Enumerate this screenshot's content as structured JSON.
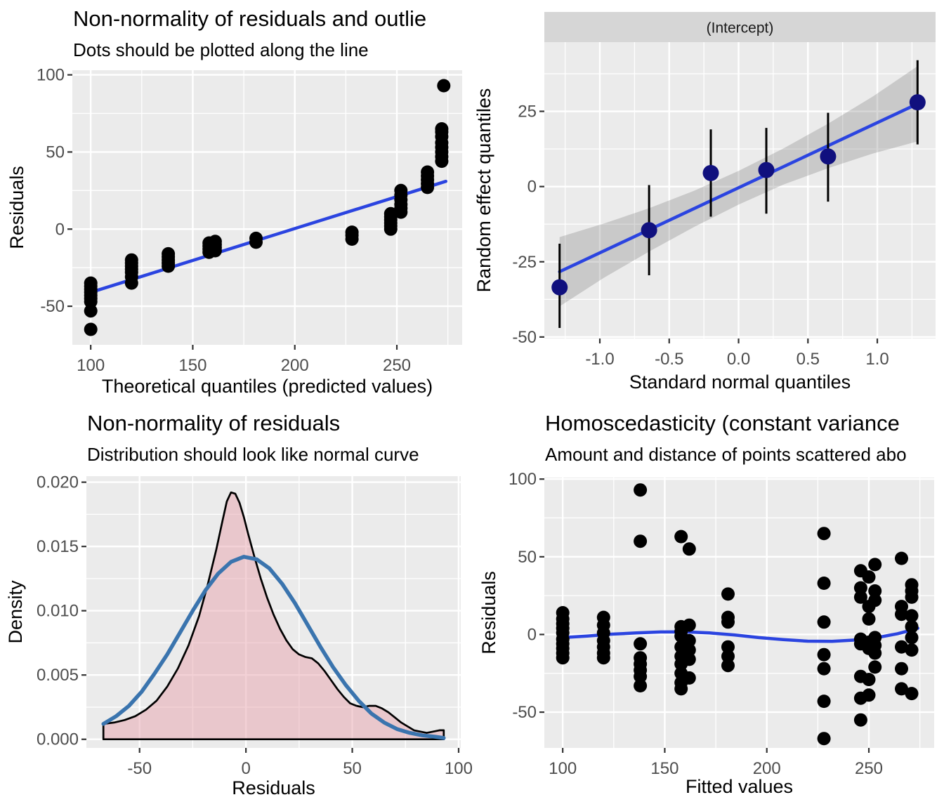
{
  "theme": {
    "panel_bg": "#EBEBEB",
    "grid_color": "#FFFFFF",
    "strip_bg": "#D6D6D6",
    "strip_text_color": "#1A1A1A",
    "tick_mark_color": "#333333",
    "tick_label_color": "#4D4D4D",
    "axis_title_color": "#000000",
    "smooth_line_blue": "#2B44E0",
    "navy_point": "#10107E",
    "point_black": "#000000",
    "errorbar_black": "#000000",
    "band_grey": "#737373",
    "density_fill_pink": "#E8A3AD",
    "density_outline": "#000000",
    "normal_curve_blue": "#3A74AE"
  },
  "chart_data": [
    {
      "id": "qq-residuals",
      "type": "scatter",
      "title": "Non-normality of residuals and outlie",
      "subtitle": "Dots should be plotted along the line",
      "xlabel": "Theoretical quantiles (predicted values)",
      "ylabel": "Residuals",
      "xlim": [
        91,
        282
      ],
      "ylim": [
        -75,
        103
      ],
      "xticks": [
        100,
        150,
        200,
        250
      ],
      "xtick_labels": [
        "100",
        "150",
        "200",
        "250"
      ],
      "yticks": [
        -50,
        0,
        50,
        100
      ],
      "ytick_labels": [
        "-50",
        "0",
        "50",
        "100"
      ],
      "xminor": [
        125,
        175,
        225,
        275
      ],
      "yminor": [
        -25,
        25,
        75
      ],
      "line": [
        [
          100,
          -41
        ],
        [
          274,
          31
        ]
      ],
      "points": [
        [
          100,
          -35
        ],
        [
          100,
          -37
        ],
        [
          100,
          -39
        ],
        [
          100,
          -41
        ],
        [
          100,
          -43
        ],
        [
          100,
          -45
        ],
        [
          100,
          -47
        ],
        [
          100,
          -53
        ],
        [
          100,
          -65
        ],
        [
          120,
          -20
        ],
        [
          120,
          -22
        ],
        [
          120,
          -24
        ],
        [
          120,
          -26
        ],
        [
          120,
          -28
        ],
        [
          120,
          -31
        ],
        [
          120,
          -35
        ],
        [
          138,
          -16
        ],
        [
          138,
          -18
        ],
        [
          138,
          -20
        ],
        [
          138,
          -22
        ],
        [
          138,
          -24
        ],
        [
          158,
          -9
        ],
        [
          158,
          -11
        ],
        [
          158,
          -13
        ],
        [
          158,
          -15
        ],
        [
          161,
          -8
        ],
        [
          161,
          -10
        ],
        [
          161,
          -12
        ],
        [
          161,
          -14
        ],
        [
          181,
          -6
        ],
        [
          181,
          -8.5
        ],
        [
          228,
          -2
        ],
        [
          228,
          -4
        ],
        [
          228,
          -6.5
        ],
        [
          247,
          0
        ],
        [
          247,
          2
        ],
        [
          247,
          4
        ],
        [
          247,
          6
        ],
        [
          247,
          8
        ],
        [
          247,
          10
        ],
        [
          252,
          11
        ],
        [
          252,
          13.5
        ],
        [
          252,
          16
        ],
        [
          252,
          19
        ],
        [
          252,
          22
        ],
        [
          252,
          25
        ],
        [
          265,
          27
        ],
        [
          265,
          29.5
        ],
        [
          265,
          32
        ],
        [
          265,
          34.5
        ],
        [
          265,
          37
        ],
        [
          272,
          44
        ],
        [
          272,
          47
        ],
        [
          272,
          50
        ],
        [
          272,
          53
        ],
        [
          272,
          56
        ],
        [
          272,
          60
        ],
        [
          272,
          63
        ],
        [
          272,
          65
        ],
        [
          273,
          93
        ]
      ]
    },
    {
      "id": "random-effects-qq",
      "type": "pointrange",
      "strip": "(Intercept)",
      "xlabel": "Standard normal quantiles",
      "ylabel": "Random effect quantiles",
      "xlim": [
        -1.4,
        1.42
      ],
      "ylim": [
        -50.5,
        48
      ],
      "xticks": [
        -1.0,
        -0.5,
        0.0,
        0.5,
        1.0
      ],
      "xtick_labels": [
        "-1.0",
        "-0.5",
        "0.0",
        "0.5",
        "1.0"
      ],
      "yticks": [
        -50,
        -25,
        0,
        25
      ],
      "ytick_labels": [
        "-50",
        "-25",
        "0",
        "25"
      ],
      "xminor": [
        -1.25,
        -0.75,
        -0.25,
        0.25,
        0.75,
        1.25
      ],
      "yminor": [
        -37.5,
        -12.5,
        12.5,
        37.5
      ],
      "band": {
        "x": [
          -1.29,
          -0.97,
          -0.645,
          -0.32,
          0,
          0.32,
          0.645,
          0.97,
          1.29
        ],
        "upper": [
          -16.8,
          -12.3,
          -7.2,
          -1.4,
          5.2,
          12.6,
          20.9,
          30.0,
          40.0
        ],
        "lower": [
          -39.8,
          -30.3,
          -21.6,
          -13.4,
          -6.0,
          0.6,
          6.1,
          11.0,
          15.0
        ]
      },
      "line": [
        [
          -1.29,
          -28.3
        ],
        [
          1.29,
          27.5
        ]
      ],
      "pointranges": [
        {
          "x": -1.29,
          "y": -33.5,
          "lo": -47,
          "hi": -19
        },
        {
          "x": -0.645,
          "y": -14.5,
          "lo": -29.5,
          "hi": 0.5
        },
        {
          "x": -0.2,
          "y": 4.5,
          "lo": -10,
          "hi": 19
        },
        {
          "x": 0.2,
          "y": 5.5,
          "lo": -9,
          "hi": 19.5
        },
        {
          "x": 0.645,
          "y": 10,
          "lo": -5,
          "hi": 24.5
        },
        {
          "x": 1.29,
          "y": 28,
          "lo": 14,
          "hi": 42
        }
      ]
    },
    {
      "id": "residual-density",
      "type": "density",
      "title": "Non-normality of residuals",
      "subtitle": "Distribution should look like normal curve",
      "xlabel": "Residuals",
      "ylabel": "Density",
      "xlim": [
        -75,
        101
      ],
      "ylim": [
        -0.00067,
        0.02047
      ],
      "xticks": [
        -50,
        0,
        50,
        100
      ],
      "xtick_labels": [
        "-50",
        "0",
        "50",
        "100"
      ],
      "yticks": [
        0,
        0.005,
        0.01,
        0.015,
        0.02
      ],
      "ytick_labels": [
        "0.000",
        "0.005",
        "0.010",
        "0.015",
        "0.020"
      ],
      "xminor": [
        -25,
        25,
        75
      ],
      "yminor": [
        0.0025,
        0.0075,
        0.0125,
        0.0175
      ],
      "density": [
        [
          -67,
          0.0012
        ],
        [
          -62,
          0.0013
        ],
        [
          -57,
          0.0015
        ],
        [
          -52,
          0.0018
        ],
        [
          -47,
          0.0023
        ],
        [
          -42,
          0.003
        ],
        [
          -37,
          0.0041
        ],
        [
          -32,
          0.0055
        ],
        [
          -27,
          0.0073
        ],
        [
          -22,
          0.0096
        ],
        [
          -18,
          0.012
        ],
        [
          -14,
          0.0147
        ],
        [
          -11,
          0.017
        ],
        [
          -9,
          0.0185
        ],
        [
          -7,
          0.0192
        ],
        [
          -5,
          0.0191
        ],
        [
          -3,
          0.0184
        ],
        [
          -1,
          0.0173
        ],
        [
          1,
          0.016
        ],
        [
          4,
          0.0142
        ],
        [
          7,
          0.0125
        ],
        [
          10,
          0.011
        ],
        [
          13,
          0.0097
        ],
        [
          16,
          0.0086
        ],
        [
          19,
          0.0077
        ],
        [
          22,
          0.007
        ],
        [
          25,
          0.0066
        ],
        [
          28,
          0.0064
        ],
        [
          31,
          0.0063
        ],
        [
          34,
          0.0059
        ],
        [
          37,
          0.0053
        ],
        [
          40,
          0.0046
        ],
        [
          43,
          0.0039
        ],
        [
          46,
          0.0033
        ],
        [
          49,
          0.0028
        ],
        [
          52,
          0.0026
        ],
        [
          55,
          0.0025
        ],
        [
          58,
          0.0026
        ],
        [
          61,
          0.0026
        ],
        [
          64,
          0.0024
        ],
        [
          67,
          0.0021
        ],
        [
          70,
          0.0017
        ],
        [
          73,
          0.0013
        ],
        [
          76,
          0.001
        ],
        [
          79,
          0.0007
        ],
        [
          82,
          0.0006
        ],
        [
          85,
          0.0005
        ],
        [
          88,
          0.0006
        ],
        [
          91,
          0.0007
        ],
        [
          93,
          0.0007
        ]
      ],
      "normal": [
        [
          -67,
          0.0012
        ],
        [
          -61,
          0.0018
        ],
        [
          -55,
          0.0026
        ],
        [
          -49,
          0.0037
        ],
        [
          -43,
          0.0051
        ],
        [
          -37,
          0.0066
        ],
        [
          -31,
          0.0083
        ],
        [
          -25,
          0.01
        ],
        [
          -19,
          0.0116
        ],
        [
          -13,
          0.0129
        ],
        [
          -7,
          0.0138
        ],
        [
          -1,
          0.0142
        ],
        [
          5,
          0.014
        ],
        [
          11,
          0.0133
        ],
        [
          17,
          0.0121
        ],
        [
          23,
          0.0106
        ],
        [
          29,
          0.0089
        ],
        [
          35,
          0.0072
        ],
        [
          41,
          0.0056
        ],
        [
          47,
          0.0042
        ],
        [
          53,
          0.003
        ],
        [
          59,
          0.002
        ],
        [
          65,
          0.0013
        ],
        [
          71,
          0.0008
        ],
        [
          77,
          0.0005
        ],
        [
          83,
          0.0003
        ],
        [
          89,
          0.0002
        ],
        [
          93,
          0.0001
        ]
      ]
    },
    {
      "id": "homoscedasticity",
      "type": "scatter",
      "title": "Homoscedasticity (constant variance",
      "subtitle": "Amount and distance of points scattered abo",
      "xlabel": "Fitted values",
      "ylabel": "Residuals",
      "xlim": [
        91,
        282
      ],
      "ylim": [
        -73,
        101
      ],
      "xticks": [
        100,
        150,
        200,
        250
      ],
      "xtick_labels": [
        "100",
        "150",
        "200",
        "250"
      ],
      "yticks": [
        -50,
        0,
        50,
        100
      ],
      "ytick_labels": [
        "-50",
        "0",
        "50",
        "100"
      ],
      "xminor": [
        125,
        175,
        225,
        275
      ],
      "yminor": [
        -25,
        25,
        75
      ],
      "line": [
        [
          100,
          -2
        ],
        [
          112,
          -1
        ],
        [
          124,
          0.2
        ],
        [
          136,
          1
        ],
        [
          148,
          1.6
        ],
        [
          160,
          1.7
        ],
        [
          172,
          1
        ],
        [
          184,
          -0.3
        ],
        [
          196,
          -2
        ],
        [
          208,
          -3.3
        ],
        [
          220,
          -4.3
        ],
        [
          232,
          -4.4
        ],
        [
          244,
          -3.5
        ],
        [
          256,
          -1.5
        ],
        [
          264,
          0.5
        ],
        [
          270,
          2.5
        ],
        [
          274,
          4
        ]
      ],
      "points": [
        [
          100,
          14
        ],
        [
          100,
          10
        ],
        [
          100,
          7
        ],
        [
          100,
          4
        ],
        [
          100,
          1
        ],
        [
          100,
          -3
        ],
        [
          100,
          -6
        ],
        [
          100,
          -9
        ],
        [
          100,
          -12
        ],
        [
          100,
          -15
        ],
        [
          120,
          11
        ],
        [
          120,
          6
        ],
        [
          120,
          1
        ],
        [
          120,
          -4
        ],
        [
          120,
          -8
        ],
        [
          120,
          -12
        ],
        [
          120,
          -15
        ],
        [
          138,
          93
        ],
        [
          138,
          60
        ],
        [
          138,
          -6
        ],
        [
          138,
          -15
        ],
        [
          138,
          -19
        ],
        [
          138,
          -23
        ],
        [
          138,
          -27
        ],
        [
          138,
          -33
        ],
        [
          158,
          63
        ],
        [
          158,
          5
        ],
        [
          158,
          2
        ],
        [
          158,
          -1
        ],
        [
          158,
          -8
        ],
        [
          158,
          -14
        ],
        [
          158,
          -19
        ],
        [
          158,
          -25
        ],
        [
          158,
          -31
        ],
        [
          158,
          -35
        ],
        [
          162,
          55
        ],
        [
          162,
          6
        ],
        [
          162,
          -4
        ],
        [
          162,
          -10
        ],
        [
          162,
          -16
        ],
        [
          162,
          -28
        ],
        [
          181,
          26
        ],
        [
          181,
          11
        ],
        [
          181,
          8
        ],
        [
          181,
          -8
        ],
        [
          181,
          -14
        ],
        [
          181,
          -20
        ],
        [
          228,
          65
        ],
        [
          228,
          33
        ],
        [
          228,
          8
        ],
        [
          228,
          -13
        ],
        [
          228,
          -22
        ],
        [
          228,
          -43
        ],
        [
          228,
          -67
        ],
        [
          246,
          41
        ],
        [
          246,
          30
        ],
        [
          246,
          24
        ],
        [
          246,
          -3
        ],
        [
          246,
          -6
        ],
        [
          246,
          -27
        ],
        [
          246,
          -41
        ],
        [
          246,
          -55
        ],
        [
          250,
          37
        ],
        [
          250,
          18
        ],
        [
          250,
          10
        ],
        [
          250,
          -5
        ],
        [
          250,
          -9
        ],
        [
          250,
          -29
        ],
        [
          250,
          -39
        ],
        [
          253,
          45
        ],
        [
          253,
          28
        ],
        [
          253,
          22
        ],
        [
          253,
          -2
        ],
        [
          253,
          -7
        ],
        [
          253,
          -12
        ],
        [
          253,
          -21
        ],
        [
          266,
          49
        ],
        [
          266,
          18
        ],
        [
          266,
          13
        ],
        [
          266,
          -8
        ],
        [
          266,
          -22
        ],
        [
          266,
          -35
        ],
        [
          271,
          32
        ],
        [
          271,
          28
        ],
        [
          271,
          24
        ],
        [
          271,
          12
        ],
        [
          271,
          5
        ],
        [
          271,
          -2
        ],
        [
          271,
          -10
        ],
        [
          271,
          -38
        ]
      ]
    }
  ]
}
